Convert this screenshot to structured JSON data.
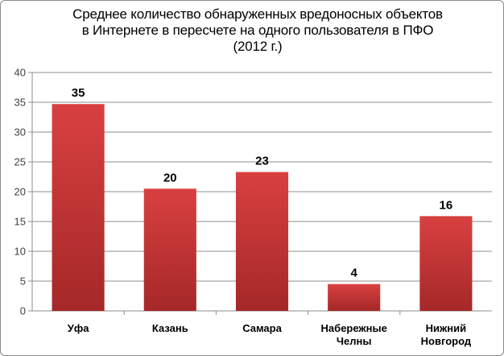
{
  "chart_data": {
    "type": "bar",
    "title_lines": [
      "Среднее количество обнаруженных вредоносных объектов",
      "в Интернете в пересчете на одного пользователя в ПФО",
      "(2012 г.)"
    ],
    "categories": [
      [
        "Уфа"
      ],
      [
        "Казань"
      ],
      [
        "Самара"
      ],
      [
        "Набережные",
        "Челны"
      ],
      [
        "Нижний",
        "Новгород"
      ]
    ],
    "values": [
      34.7,
      20.5,
      23.3,
      4.5,
      15.9
    ],
    "data_labels": [
      "35",
      "20",
      "23",
      "4",
      "16"
    ],
    "ylim": [
      0,
      40
    ],
    "yticks": [
      "0",
      "5",
      "10",
      "15",
      "20",
      "25",
      "30",
      "35",
      "40"
    ],
    "grid": true,
    "legend": "none",
    "colors": {
      "bar_light": "#d94040",
      "bar_dark": "#a52828",
      "grid": "#8c8c8c"
    }
  }
}
